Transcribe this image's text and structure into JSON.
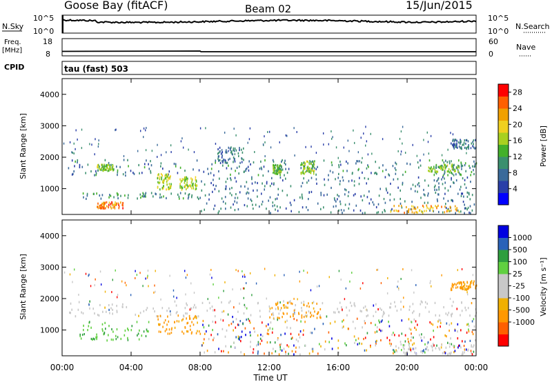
{
  "header": {
    "station": "Goose Bay (fitACF)",
    "beam": "Beam 02",
    "date": "15/Jun/2015"
  },
  "status_panels": {
    "nsky_label": "N.Sky",
    "nsky_ticks": [
      "10^5",
      "10^0"
    ],
    "nsearch_label": "N.Search",
    "nsearch_ticks": [
      "10^5",
      "10^0"
    ],
    "freq_label": "Freq.",
    "freq_unit": "[MHz]",
    "freq_ticks": [
      "18",
      "8"
    ],
    "nave_label": "Nave",
    "nave_ticks": [
      "60",
      "0"
    ],
    "cpid_label": "CPID",
    "cpid_text": "tau (fast) 503"
  },
  "chart_data": [
    {
      "type": "heatmap",
      "panel": "power",
      "ylabel": "Slant Range [km]",
      "yticks": [
        "4000",
        "3000",
        "2000",
        "1000"
      ],
      "ylim": [
        180,
        4500
      ],
      "xlim_hours": [
        0,
        24
      ],
      "colorbar_label": "Power [dB]",
      "colorbar_ticks": [
        "28",
        "24",
        "20",
        "16",
        "12",
        "8",
        "4"
      ],
      "colorbar_range": [
        0,
        30
      ],
      "colors": [
        "#0000ff",
        "#2a3fa8",
        "#3a6a9a",
        "#3b8f6e",
        "#43b02a",
        "#a8d020",
        "#f0d020",
        "#f0a000",
        "#ff6000",
        "#ff0000"
      ],
      "regions": [
        {
          "t": [
            0.3,
            21.5
          ],
          "r": [
            1450,
            1950
          ],
          "v": 9
        },
        {
          "t": [
            21.5,
            24
          ],
          "r": [
            1450,
            1950
          ],
          "v": 10
        },
        {
          "t": [
            2.0,
            3.0
          ],
          "r": [
            1600,
            1800
          ],
          "v": 15
        },
        {
          "t": [
            5.5,
            6.3
          ],
          "r": [
            1000,
            1500
          ],
          "v": 17
        },
        {
          "t": [
            6.8,
            7.8
          ],
          "r": [
            1000,
            1400
          ],
          "v": 16
        },
        {
          "t": [
            12.2,
            12.7
          ],
          "r": [
            1500,
            1800
          ],
          "v": 14
        },
        {
          "t": [
            13.8,
            14.6
          ],
          "r": [
            1500,
            1900
          ],
          "v": 15
        },
        {
          "t": [
            21.2,
            23.0
          ],
          "r": [
            1550,
            1800
          ],
          "v": 15
        },
        {
          "t": [
            8.0,
            24.0
          ],
          "r": [
            250,
            1400
          ],
          "v": 8
        },
        {
          "t": [
            19.0,
            23.0
          ],
          "r": [
            250,
            500
          ],
          "v": 22
        },
        {
          "t": [
            2.0,
            3.5
          ],
          "r": [
            400,
            600
          ],
          "v": 24
        },
        {
          "t": [
            1.0,
            8.0
          ],
          "r": [
            700,
            900
          ],
          "v": 10
        },
        {
          "t": [
            22.5,
            24
          ],
          "r": [
            2300,
            2600
          ],
          "v": 8
        },
        {
          "t": [
            9.0,
            10.5
          ],
          "r": [
            1850,
            2350
          ],
          "v": 8
        }
      ]
    },
    {
      "type": "heatmap",
      "panel": "velocity",
      "ylabel": "Slant Range [km]",
      "yticks": [
        "4000",
        "3000",
        "2000",
        "1000"
      ],
      "ylim": [
        180,
        4500
      ],
      "xlim_hours": [
        0,
        24
      ],
      "xticks": [
        "00:00",
        "04:00",
        "08:00",
        "12:00",
        "16:00",
        "20:00",
        "00:00"
      ],
      "xlabel": "Time UT",
      "colorbar_label": "Velocity [m s⁻¹]",
      "colorbar_ticks": [
        "1000",
        "500",
        "100",
        "25",
        "-25",
        "-100",
        "-500",
        "-1000"
      ],
      "colors": [
        "#ff0000",
        "#ff6000",
        "#ff9800",
        "#f0b000",
        "#c8c8c8",
        "#c8c8c8",
        "#60d040",
        "#2e9e3e",
        "#2a62b8",
        "#0000e0"
      ],
      "regions": [
        {
          "t": [
            0.3,
            24
          ],
          "r": [
            1450,
            1950
          ],
          "v": "gray"
        },
        {
          "t": [
            5.5,
            8.0
          ],
          "r": [
            900,
            1500
          ],
          "v": "orange"
        },
        {
          "t": [
            12.0,
            15.0
          ],
          "r": [
            1400,
            1900
          ],
          "v": "orange"
        },
        {
          "t": [
            1.0,
            5.0
          ],
          "r": [
            700,
            1300
          ],
          "v": "green"
        },
        {
          "t": [
            8.0,
            24
          ],
          "r": [
            250,
            1400
          ],
          "v": "mixed"
        },
        {
          "t": [
            19.0,
            24
          ],
          "r": [
            250,
            600
          ],
          "v": "gray"
        },
        {
          "t": [
            22.5,
            24
          ],
          "r": [
            2300,
            2600
          ],
          "v": "orange"
        }
      ]
    }
  ]
}
